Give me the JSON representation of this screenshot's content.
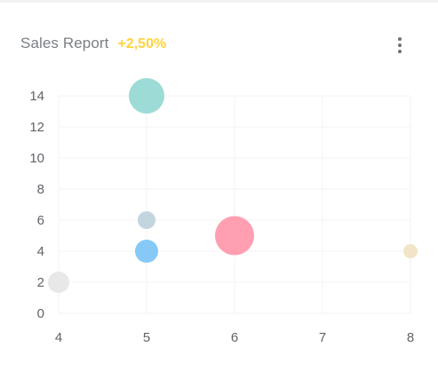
{
  "header": {
    "title": "Sales Report",
    "growth": "+2,50%"
  },
  "colors": {
    "growth": "#ffd43b",
    "grid": "#f3f3f3"
  },
  "chart_data": {
    "type": "scatter",
    "subtype": "bubble",
    "title": "Sales Report",
    "xlabel": "",
    "ylabel": "",
    "xlim": [
      4,
      8
    ],
    "ylim": [
      0,
      14
    ],
    "x_ticks": [
      4,
      5,
      6,
      7,
      8
    ],
    "y_ticks": [
      0,
      2,
      4,
      6,
      8,
      10,
      12,
      14
    ],
    "grid": true,
    "legend": "none",
    "points": [
      {
        "x": 5,
        "y": 14,
        "size": 20,
        "color": "#9ddbd6"
      },
      {
        "x": 5,
        "y": 6,
        "size": 10,
        "color": "#c3d6df"
      },
      {
        "x": 6,
        "y": 5,
        "size": 22,
        "color": "#ff9fb1"
      },
      {
        "x": 5,
        "y": 4,
        "size": 13,
        "color": "#86c9f7"
      },
      {
        "x": 4,
        "y": 2,
        "size": 12,
        "color": "#e8e8e8"
      },
      {
        "x": 8,
        "y": 4,
        "size": 8,
        "color": "#f2e4c7"
      }
    ]
  }
}
